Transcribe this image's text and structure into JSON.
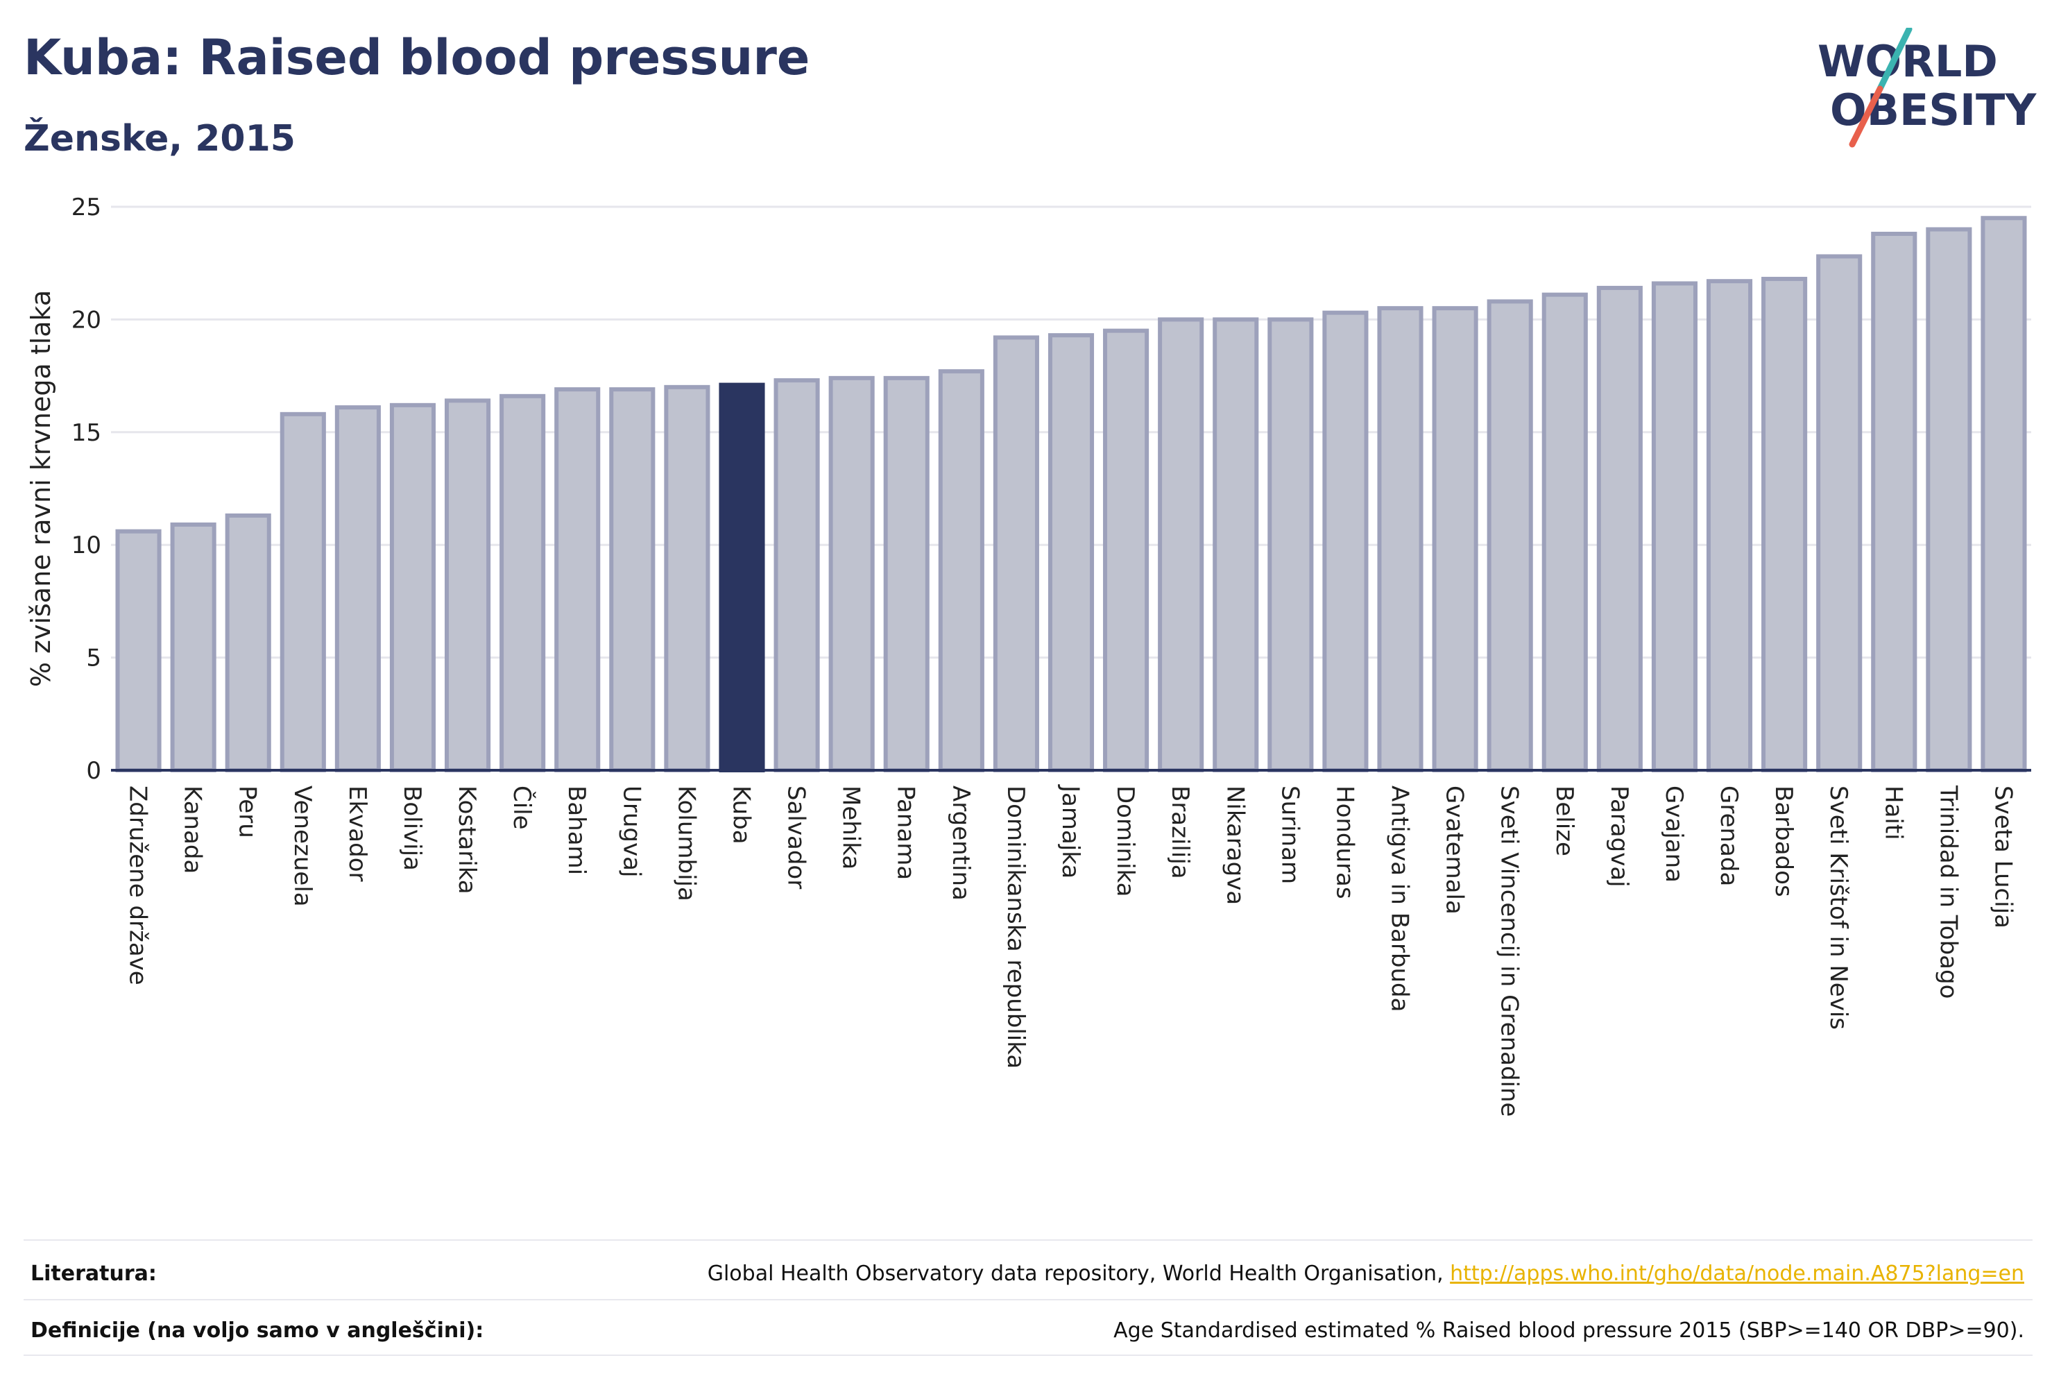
{
  "header": {
    "title": "Kuba: Raised blood pressure",
    "subtitle": "Ženske, 2015"
  },
  "logo": {
    "line1": "WORLD",
    "line2": "OBESITY",
    "colors": {
      "text": "#2a3560",
      "slash_top": "#3bb3b0",
      "slash_bottom": "#e8604c"
    }
  },
  "chart_data": {
    "type": "bar",
    "ylabel": "% zvišane ravni krvnega tlaka",
    "ylim": [
      0,
      25
    ],
    "yticks": [
      0,
      5,
      10,
      15,
      20,
      25
    ],
    "grid": true,
    "highlight": "Kuba",
    "colors": {
      "bar": "#bfc2cf",
      "bar_border": "#9da1bb",
      "highlight": "#2a3560"
    },
    "categories": [
      "Združene države",
      "Kanada",
      "Peru",
      "Venezuela",
      "Ekvador",
      "Bolivija",
      "Kostarika",
      "Čile",
      "Bahami",
      "Urugvaj",
      "Kolumbija",
      "Kuba",
      "Salvador",
      "Mehika",
      "Panama",
      "Argentina",
      "Dominikanska republika",
      "Jamajka",
      "Dominika",
      "Brazilija",
      "Nikaragva",
      "Surinam",
      "Honduras",
      "Antigva in Barbuda",
      "Gvatemala",
      "Sveti Vincencij in Grenadine",
      "Belize",
      "Paragvaj",
      "Gvajana",
      "Grenada",
      "Barbados",
      "Sveti Krištof in Nevis",
      "Haiti",
      "Trinidad in Tobago",
      "Sveta Lucija"
    ],
    "values": [
      10.6,
      10.9,
      11.3,
      15.8,
      16.1,
      16.2,
      16.4,
      16.6,
      16.9,
      16.9,
      17.0,
      17.1,
      17.3,
      17.4,
      17.4,
      17.7,
      19.2,
      19.3,
      19.5,
      20.0,
      20.0,
      20.0,
      20.3,
      20.5,
      20.5,
      20.8,
      21.1,
      21.4,
      21.6,
      21.7,
      21.8,
      22.8,
      23.8,
      24.0,
      24.5
    ]
  },
  "footer": {
    "literature_label": "Literatura:",
    "literature_text": "Global Health Observatory data repository, World Health Organisation, ",
    "literature_link": "http://apps.who.int/gho/data/node.main.A875?lang=en",
    "definitions_label": "Definicije (na voljo samo v angleščini):",
    "definitions_text": "Age Standardised estimated % Raised blood pressure 2015 (SBP>=140 OR DBP>=90)."
  }
}
